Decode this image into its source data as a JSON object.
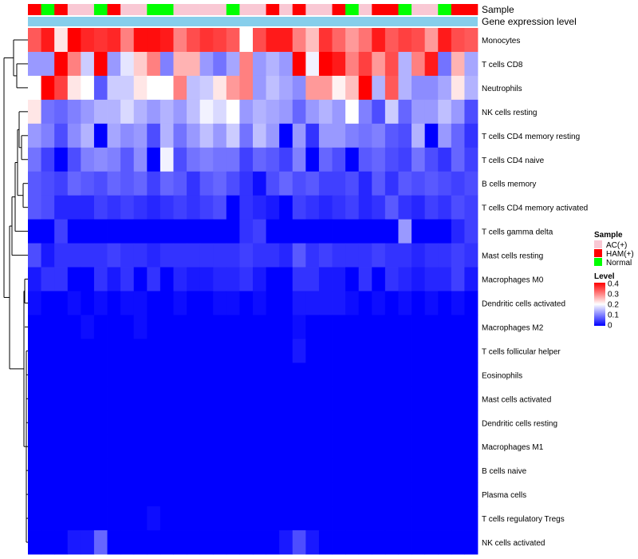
{
  "chart_data": {
    "type": "heatmap",
    "annotation_labels": [
      "Sample",
      "Gene expression level"
    ],
    "sample_groups": [
      "AC(+)",
      "HAM(+)",
      "Normal"
    ],
    "sample_colors": {
      "AC(+)": "#f9c8d4",
      "HAM(+)": "#ff0000",
      "Normal": "#00ff00"
    },
    "expression_color": "#87ceeb",
    "samples": [
      "HAM(+)",
      "Normal",
      "HAM(+)",
      "AC(+)",
      "AC(+)",
      "Normal",
      "HAM(+)",
      "AC(+)",
      "AC(+)",
      "Normal",
      "Normal",
      "AC(+)",
      "AC(+)",
      "AC(+)",
      "AC(+)",
      "Normal",
      "AC(+)",
      "AC(+)",
      "HAM(+)",
      "AC(+)",
      "HAM(+)",
      "AC(+)",
      "AC(+)",
      "HAM(+)",
      "Normal",
      "AC(+)",
      "HAM(+)",
      "HAM(+)",
      "Normal",
      "AC(+)",
      "AC(+)",
      "Normal",
      "HAM(+)",
      "HAM(+)"
    ],
    "rows": [
      "Monocytes",
      "T cells CD8",
      "Neutrophils",
      "NK cells resting",
      "T cells CD4 memory resting",
      "T cells CD4 naive",
      "B cells memory",
      "T cells CD4 memory activated",
      "T cells gamma delta",
      "Mast cells resting",
      "Macrophages M0",
      "Dendritic cells activated",
      "Macrophages M2",
      "T cells follicular helper",
      "Eosinophils",
      "Mast cells activated",
      "Dendritic cells resting",
      "Macrophages M1",
      "B cells naive",
      "Plasma cells",
      "T cells regulatory  Tregs",
      "NK cells activated"
    ],
    "values": [
      [
        0.33,
        0.38,
        0.22,
        0.4,
        0.37,
        0.36,
        0.37,
        0.3,
        0.39,
        0.39,
        0.38,
        0.3,
        0.34,
        0.36,
        0.35,
        0.33,
        0.2,
        0.34,
        0.38,
        0.38,
        0.3,
        0.25,
        0.36,
        0.32,
        0.28,
        0.31,
        0.38,
        0.33,
        0.35,
        0.34,
        0.28,
        0.38,
        0.34,
        0.33
      ],
      [
        0.12,
        0.12,
        0.4,
        0.3,
        0.16,
        0.4,
        0.12,
        0.18,
        0.24,
        0.3,
        0.1,
        0.26,
        0.26,
        0.12,
        0.09,
        0.13,
        0.3,
        0.12,
        0.14,
        0.12,
        0.4,
        0.19,
        0.4,
        0.38,
        0.3,
        0.35,
        0.28,
        0.34,
        0.14,
        0.3,
        0.38,
        0.09,
        0.26,
        0.13
      ],
      [
        0.2,
        0.4,
        0.35,
        0.22,
        0.2,
        0.07,
        0.16,
        0.16,
        0.22,
        0.2,
        0.2,
        0.3,
        0.15,
        0.16,
        0.22,
        0.28,
        0.3,
        0.12,
        0.15,
        0.13,
        0.11,
        0.28,
        0.28,
        0.21,
        0.25,
        0.4,
        0.14,
        0.33,
        0.14,
        0.11,
        0.11,
        0.13,
        0.22,
        0.14
      ],
      [
        0.22,
        0.09,
        0.08,
        0.1,
        0.12,
        0.14,
        0.14,
        0.17,
        0.14,
        0.12,
        0.14,
        0.12,
        0.15,
        0.19,
        0.17,
        0.2,
        0.12,
        0.14,
        0.13,
        0.12,
        0.08,
        0.12,
        0.14,
        0.12,
        0.2,
        0.1,
        0.06,
        0.16,
        0.08,
        0.12,
        0.12,
        0.15,
        0.12,
        0.06
      ],
      [
        0.12,
        0.1,
        0.06,
        0.11,
        0.14,
        0.0,
        0.13,
        0.11,
        0.12,
        0.06,
        0.14,
        0.09,
        0.12,
        0.15,
        0.12,
        0.16,
        0.09,
        0.15,
        0.12,
        0.0,
        0.12,
        0.04,
        0.12,
        0.12,
        0.1,
        0.09,
        0.1,
        0.07,
        0.06,
        0.14,
        0.0,
        0.12,
        0.08,
        0.04
      ],
      [
        0.09,
        0.05,
        0.0,
        0.06,
        0.1,
        0.11,
        0.1,
        0.07,
        0.11,
        0.0,
        0.19,
        0.06,
        0.09,
        0.1,
        0.09,
        0.09,
        0.05,
        0.08,
        0.07,
        0.05,
        0.1,
        0.0,
        0.08,
        0.06,
        0.0,
        0.07,
        0.08,
        0.06,
        0.05,
        0.09,
        0.06,
        0.04,
        0.08,
        0.05
      ],
      [
        0.07,
        0.06,
        0.05,
        0.08,
        0.07,
        0.06,
        0.08,
        0.07,
        0.08,
        0.05,
        0.08,
        0.07,
        0.04,
        0.07,
        0.08,
        0.06,
        0.04,
        0.01,
        0.06,
        0.08,
        0.06,
        0.07,
        0.05,
        0.05,
        0.06,
        0.03,
        0.07,
        0.04,
        0.07,
        0.06,
        0.07,
        0.06,
        0.05,
        0.06
      ],
      [
        0.07,
        0.06,
        0.03,
        0.03,
        0.03,
        0.05,
        0.04,
        0.05,
        0.04,
        0.03,
        0.04,
        0.05,
        0.04,
        0.05,
        0.06,
        0.0,
        0.04,
        0.03,
        0.02,
        0.0,
        0.05,
        0.04,
        0.03,
        0.04,
        0.05,
        0.03,
        0.04,
        0.07,
        0.04,
        0.03,
        0.05,
        0.04,
        0.06,
        0.05
      ],
      [
        0.0,
        0.0,
        0.05,
        0.0,
        0.0,
        0.0,
        0.0,
        0.0,
        0.0,
        0.0,
        0.0,
        0.0,
        0.0,
        0.0,
        0.0,
        0.0,
        0.04,
        0.05,
        0.0,
        0.0,
        0.0,
        0.0,
        0.0,
        0.0,
        0.0,
        0.0,
        0.0,
        0.0,
        0.12,
        0.0,
        0.0,
        0.0,
        0.03,
        0.05
      ],
      [
        0.06,
        0.02,
        0.04,
        0.04,
        0.04,
        0.04,
        0.05,
        0.04,
        0.04,
        0.03,
        0.04,
        0.04,
        0.04,
        0.04,
        0.04,
        0.04,
        0.05,
        0.04,
        0.04,
        0.03,
        0.07,
        0.04,
        0.05,
        0.04,
        0.04,
        0.04,
        0.05,
        0.04,
        0.04,
        0.03,
        0.04,
        0.04,
        0.05,
        0.04
      ],
      [
        0.02,
        0.04,
        0.04,
        0.0,
        0.0,
        0.04,
        0.02,
        0.04,
        0.0,
        0.04,
        0.0,
        0.03,
        0.02,
        0.02,
        0.03,
        0.03,
        0.04,
        0.02,
        0.0,
        0.0,
        0.04,
        0.04,
        0.02,
        0.02,
        0.0,
        0.04,
        0.0,
        0.04,
        0.03,
        0.02,
        0.03,
        0.03,
        0.05,
        0.02
      ],
      [
        0.01,
        0.0,
        0.0,
        0.01,
        0.0,
        0.01,
        0.0,
        0.01,
        0.01,
        0.0,
        0.0,
        0.01,
        0.0,
        0.0,
        0.01,
        0.01,
        0.0,
        0.01,
        0.0,
        0.0,
        0.02,
        0.02,
        0.02,
        0.02,
        0.01,
        0.0,
        0.01,
        0.0,
        0.01,
        0.0,
        0.01,
        0.0,
        0.01,
        0.0
      ],
      [
        0.0,
        0.0,
        0.0,
        0.0,
        0.01,
        0.0,
        0.0,
        0.0,
        0.01,
        0.0,
        0.0,
        0.0,
        0.0,
        0.0,
        0.0,
        0.0,
        0.0,
        0.0,
        0.0,
        0.0,
        0.01,
        0.0,
        0.0,
        0.0,
        0.0,
        0.0,
        0.0,
        0.0,
        0.0,
        0.0,
        0.0,
        0.0,
        0.0,
        0.0
      ],
      [
        0.0,
        0.0,
        0.0,
        0.0,
        0.0,
        0.0,
        0.0,
        0.0,
        0.0,
        0.0,
        0.0,
        0.0,
        0.0,
        0.0,
        0.0,
        0.0,
        0.0,
        0.0,
        0.0,
        0.0,
        0.02,
        0.0,
        0.0,
        0.0,
        0.0,
        0.0,
        0.0,
        0.0,
        0.0,
        0.0,
        0.0,
        0.0,
        0.0,
        0.0
      ],
      [
        0.0,
        0.0,
        0.0,
        0.0,
        0.0,
        0.0,
        0.0,
        0.0,
        0.0,
        0.0,
        0.0,
        0.0,
        0.0,
        0.0,
        0.0,
        0.0,
        0.0,
        0.0,
        0.0,
        0.0,
        0.0,
        0.0,
        0.0,
        0.0,
        0.0,
        0.0,
        0.0,
        0.0,
        0.0,
        0.0,
        0.0,
        0.0,
        0.0,
        0.0
      ],
      [
        0.0,
        0.0,
        0.0,
        0.0,
        0.0,
        0.0,
        0.0,
        0.0,
        0.0,
        0.0,
        0.0,
        0.0,
        0.0,
        0.0,
        0.0,
        0.0,
        0.0,
        0.0,
        0.0,
        0.0,
        0.0,
        0.0,
        0.0,
        0.0,
        0.0,
        0.0,
        0.0,
        0.0,
        0.0,
        0.0,
        0.0,
        0.0,
        0.0,
        0.0
      ],
      [
        0.0,
        0.0,
        0.0,
        0.0,
        0.0,
        0.0,
        0.0,
        0.0,
        0.0,
        0.0,
        0.0,
        0.0,
        0.0,
        0.0,
        0.0,
        0.0,
        0.0,
        0.0,
        0.0,
        0.0,
        0.0,
        0.0,
        0.0,
        0.0,
        0.0,
        0.0,
        0.0,
        0.0,
        0.0,
        0.0,
        0.0,
        0.0,
        0.0,
        0.0
      ],
      [
        0.0,
        0.0,
        0.0,
        0.0,
        0.0,
        0.0,
        0.0,
        0.0,
        0.0,
        0.0,
        0.0,
        0.0,
        0.0,
        0.0,
        0.0,
        0.0,
        0.0,
        0.0,
        0.0,
        0.0,
        0.0,
        0.0,
        0.0,
        0.0,
        0.0,
        0.0,
        0.0,
        0.0,
        0.0,
        0.0,
        0.0,
        0.0,
        0.0,
        0.0
      ],
      [
        0.0,
        0.0,
        0.0,
        0.0,
        0.0,
        0.0,
        0.0,
        0.0,
        0.0,
        0.0,
        0.0,
        0.0,
        0.0,
        0.0,
        0.0,
        0.0,
        0.0,
        0.0,
        0.0,
        0.0,
        0.0,
        0.0,
        0.0,
        0.0,
        0.0,
        0.0,
        0.0,
        0.0,
        0.0,
        0.0,
        0.0,
        0.0,
        0.0,
        0.0
      ],
      [
        0.0,
        0.0,
        0.0,
        0.0,
        0.0,
        0.0,
        0.0,
        0.0,
        0.0,
        0.0,
        0.0,
        0.0,
        0.0,
        0.0,
        0.0,
        0.0,
        0.0,
        0.0,
        0.0,
        0.0,
        0.0,
        0.0,
        0.0,
        0.0,
        0.0,
        0.0,
        0.0,
        0.0,
        0.0,
        0.0,
        0.0,
        0.0,
        0.0,
        0.0
      ],
      [
        0.0,
        0.0,
        0.0,
        0.0,
        0.0,
        0.0,
        0.0,
        0.0,
        0.0,
        0.01,
        0.0,
        0.0,
        0.0,
        0.0,
        0.0,
        0.0,
        0.0,
        0.0,
        0.0,
        0.0,
        0.0,
        0.0,
        0.0,
        0.0,
        0.0,
        0.0,
        0.0,
        0.0,
        0.0,
        0.0,
        0.0,
        0.0,
        0.0,
        0.0
      ],
      [
        0.0,
        0.0,
        0.0,
        0.02,
        0.02,
        0.08,
        0.0,
        0.0,
        0.0,
        0.0,
        0.0,
        0.0,
        0.0,
        0.0,
        0.0,
        0.0,
        0.0,
        0.0,
        0.0,
        0.02,
        0.06,
        0.02,
        0.0,
        0.0,
        0.0,
        0.0,
        0.0,
        0.0,
        0.0,
        0.0,
        0.0,
        0.0,
        0.0,
        0.0
      ]
    ],
    "legend": {
      "sample_title": "Sample",
      "level_title": "Level",
      "level_ticks": [
        "0.4",
        "0.3",
        "0.2",
        "0.1",
        "0"
      ],
      "color_scale": [
        "#0000ff",
        "#ffffff",
        "#ff0000"
      ],
      "range": [
        0,
        0.4
      ]
    }
  }
}
